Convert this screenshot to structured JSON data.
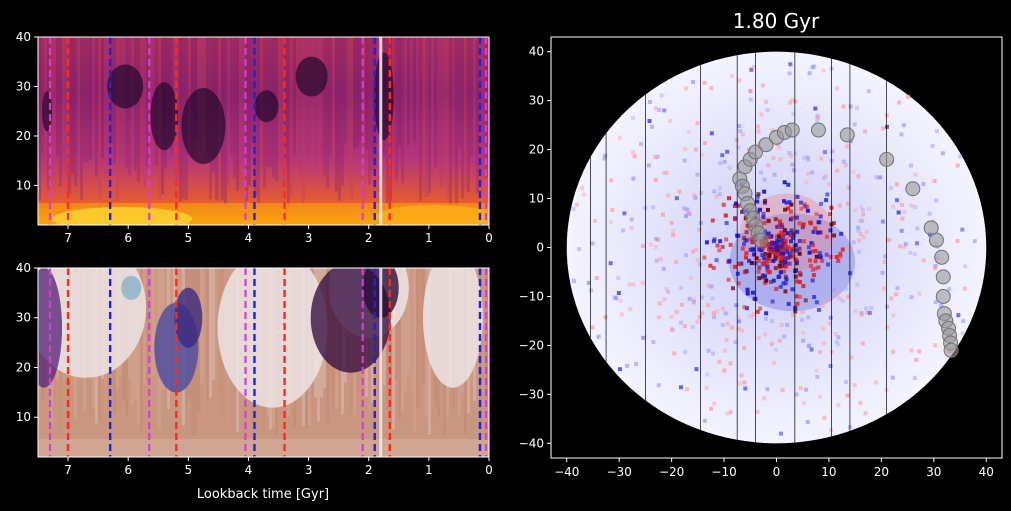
{
  "chart_data": [
    {
      "type": "heatmap",
      "panel": "top-left",
      "xlabel": "",
      "ylabel": "",
      "xlim": [
        7.5,
        0
      ],
      "ylim": [
        2,
        40
      ],
      "x_ticks": [
        7,
        6,
        5,
        4,
        3,
        2,
        1,
        0
      ],
      "y_ticks": [
        10,
        20,
        30,
        40
      ],
      "colormap": "inferno",
      "current_time_marker": 1.8,
      "vlines_red": [
        7.0,
        5.2,
        3.4,
        1.65
      ],
      "vlines_blue": [
        6.3,
        3.9,
        1.9,
        0.15
      ],
      "vlines_magenta": [
        7.3,
        5.65,
        4.05,
        2.1,
        0.05
      ]
    },
    {
      "type": "heatmap",
      "panel": "bottom-left",
      "xlabel": "Lookback time [Gyr]",
      "ylabel": "",
      "xlim": [
        7.5,
        0
      ],
      "ylim": [
        2,
        40
      ],
      "x_ticks": [
        7,
        6,
        5,
        4,
        3,
        2,
        1,
        0
      ],
      "y_ticks": [
        10,
        20,
        30,
        40
      ],
      "colormap": "twilight",
      "current_time_marker": 1.8,
      "vlines_red": [
        7.0,
        5.2,
        3.4,
        1.65
      ],
      "vlines_blue": [
        6.3,
        3.9,
        1.9,
        0.15
      ],
      "vlines_magenta": [
        7.3,
        5.65,
        4.05,
        2.1,
        0.05
      ]
    },
    {
      "type": "scatter",
      "panel": "right",
      "title": "1.80 Gyr",
      "xlabel": "",
      "ylabel": "",
      "xlim": [
        -43,
        43
      ],
      "ylim": [
        -43,
        43
      ],
      "x_ticks": [
        -40,
        -30,
        -20,
        -10,
        0,
        10,
        20,
        30,
        40
      ],
      "y_ticks": [
        -40,
        -30,
        -20,
        -10,
        0,
        10,
        20,
        30,
        40
      ],
      "disk_radius": 40,
      "background_map": "bwr",
      "vertical_lines_x": [
        -35.5,
        -32.5,
        -25,
        -14.5,
        -7.5,
        -4,
        3.5,
        10.5,
        14,
        21
      ],
      "orbit_points": [
        [
          -7,
          14
        ],
        [
          -6.5,
          12.5
        ],
        [
          -6,
          11
        ],
        [
          -5.5,
          9
        ],
        [
          -5,
          7.5
        ],
        [
          -4.5,
          6
        ],
        [
          -4,
          4.5
        ],
        [
          -3.5,
          3
        ],
        [
          -3,
          1.5
        ],
        [
          -6,
          16.5
        ],
        [
          -5,
          18
        ],
        [
          -4,
          19.5
        ],
        [
          -2,
          21
        ],
        [
          0,
          22.5
        ],
        [
          1.5,
          23.5
        ],
        [
          3,
          24
        ],
        [
          8,
          24
        ],
        [
          13.5,
          23
        ],
        [
          21,
          18
        ],
        [
          26,
          12
        ],
        [
          29.5,
          4
        ],
        [
          30.5,
          1.5
        ],
        [
          31.5,
          -2
        ],
        [
          31.8,
          -6
        ],
        [
          31.8,
          -10
        ],
        [
          32,
          -13.5
        ],
        [
          32.3,
          -15
        ],
        [
          32.8,
          -16.5
        ],
        [
          33,
          -18
        ],
        [
          33.2,
          -19.5
        ],
        [
          33.3,
          -21
        ]
      ]
    }
  ]
}
